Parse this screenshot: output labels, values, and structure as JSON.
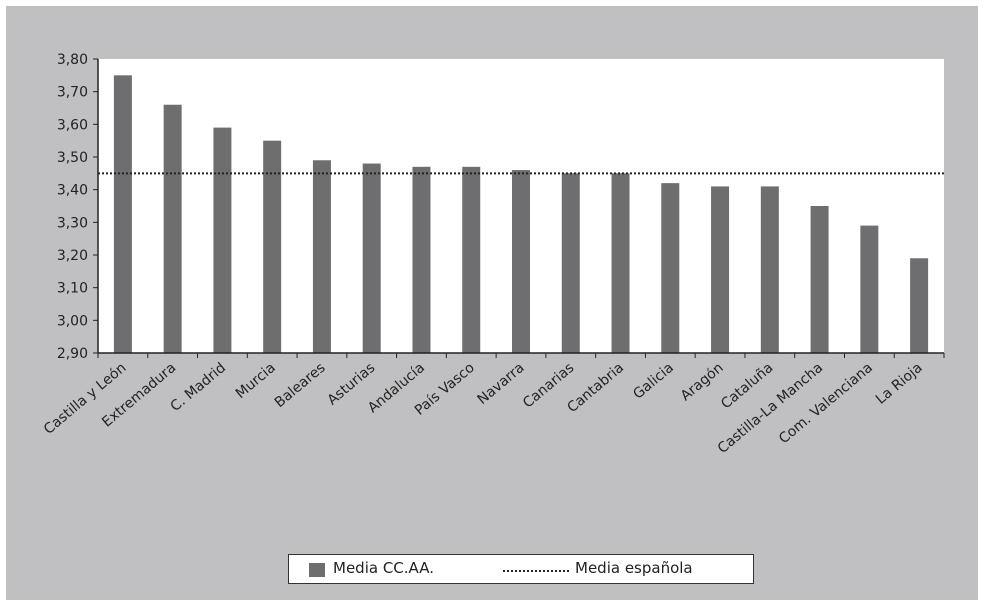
{
  "chart_data": {
    "type": "bar",
    "title": "",
    "xlabel": "",
    "ylabel": "",
    "categories": [
      "Castilla y León",
      "Extremadura",
      "C. Madrid",
      "Murcia",
      "Baleares",
      "Asturias",
      "Andalucía",
      "País Vasco",
      "Navarra",
      "Canarias",
      "Cantabria",
      "Galicia",
      "Aragón",
      "Cataluña",
      "Castilla-La Mancha",
      "Com. Valenciana",
      "La Rioja"
    ],
    "series": [
      {
        "name": "Media CC.AA.",
        "values": [
          3.75,
          3.66,
          3.59,
          3.55,
          3.49,
          3.48,
          3.47,
          3.47,
          3.46,
          3.45,
          3.45,
          3.42,
          3.41,
          3.41,
          3.35,
          3.29,
          3.19
        ]
      }
    ],
    "reference_line": {
      "name": "Media española",
      "value": 3.45,
      "style": "dotted"
    },
    "ylim": [
      2.9,
      3.8
    ],
    "yticks": [
      2.9,
      3.0,
      3.1,
      3.2,
      3.3,
      3.4,
      3.5,
      3.6,
      3.7,
      3.8
    ],
    "ytick_labels": [
      "2,90",
      "3,00",
      "3,10",
      "3,20",
      "3,30",
      "3,40",
      "3,50",
      "3,60",
      "3,70",
      "3,80"
    ],
    "grid": false,
    "legend_position": "bottom",
    "colors": {
      "bar": "#6e6e70",
      "frame": "#c0c0c2",
      "plot_bg": "#ffffff",
      "reference": "#222222"
    }
  },
  "legend": {
    "bar_label": "Media CC.AA.",
    "line_label": "Media española"
  }
}
